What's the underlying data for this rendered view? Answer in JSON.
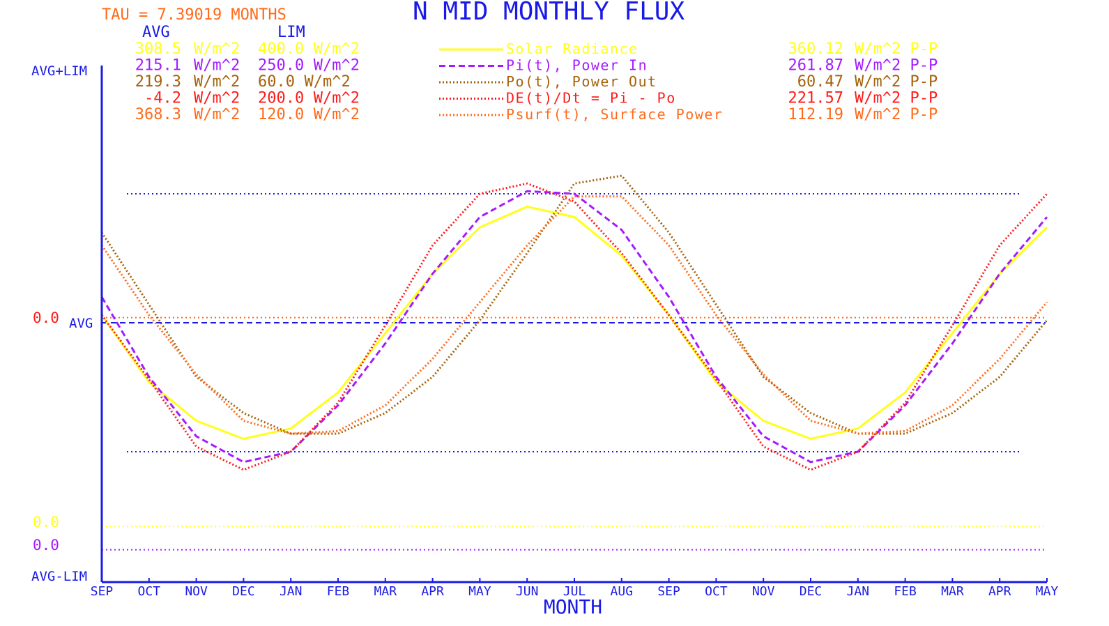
{
  "title": "N MID MONTHLY FLUX",
  "tau_label": "TAU = 7.39019 MONTHS",
  "col_avg": "AVG",
  "col_lim": "LIM",
  "ytick_top": "AVG+LIM",
  "ytick_mid": "AVG",
  "ytick_bot": "AVG-LIM",
  "zero_red": "0.0",
  "zero_yellow": "0.0",
  "zero_purple": "0.0",
  "colors": {
    "axis": "#1a1ae6",
    "title": "#1a1ae6",
    "tau": "#ff6a1a"
  },
  "legend": [
    {
      "avg": "308.5",
      "lim": "400.0",
      "avg_unit": "W/m^2",
      "lim_unit": "W/m^2",
      "name": "Solar Radiance",
      "pp": "360.12",
      "pp_unit": "W/m^2 P-P",
      "color": "#ffff1a"
    },
    {
      "avg": "215.1",
      "lim": "250.0",
      "avg_unit": "W/m^2",
      "lim_unit": "W/m^2",
      "name": "Pi(t), Power In",
      "pp": "261.87",
      "pp_unit": "W/m^2 P-P",
      "color": "#a51aff"
    },
    {
      "avg": "219.3",
      "lim": "60.0",
      "avg_unit": "W/m^2",
      "lim_unit": "W/m^2",
      "name": "Po(t), Power Out",
      "pp": "60.47",
      "pp_unit": "W/m^2 P-P",
      "color": "#a5620a"
    },
    {
      "avg": "-4.2",
      "lim": "200.0",
      "avg_unit": "W/m^2",
      "lim_unit": "W/m^2",
      "name": "DE(t)/Dt = Pi - Po",
      "pp": "221.57",
      "pp_unit": "W/m^2 P-P",
      "color": "#ff1a1a"
    },
    {
      "avg": "368.3",
      "lim": "120.0",
      "avg_unit": "W/m^2",
      "lim_unit": "W/m^2",
      "name": "Psurf(t), Surface Power",
      "pp": "112.19",
      "pp_unit": "W/m^2 P-P",
      "color": "#ff6a1a"
    }
  ],
  "chart_data": {
    "type": "line",
    "title": "N MID MONTHLY FLUX",
    "xlabel": "MONTH",
    "ylabel": "",
    "ylim": [
      -1,
      1
    ],
    "grid": false,
    "categories": [
      "SEP",
      "OCT",
      "NOV",
      "DEC",
      "JAN",
      "FEB",
      "MAR",
      "APR",
      "MAY",
      "JUN",
      "JUL",
      "AUG",
      "SEP",
      "OCT",
      "NOV",
      "DEC",
      "JAN",
      "FEB",
      "MAR",
      "APR",
      "MAY"
    ],
    "reference_lines": [
      {
        "y": 0.5,
        "color": "#1a1ae6"
      },
      {
        "y": -0.5,
        "color": "#1a1ae6"
      },
      {
        "y": 0.0,
        "color": "#1a1ae6"
      },
      {
        "y": 0.02,
        "color": "#ff6a1a"
      },
      {
        "y": -0.79,
        "color": "#ffff1a"
      },
      {
        "y": -0.88,
        "color": "#a51aff"
      }
    ],
    "series": [
      {
        "name": "Solar Radiance",
        "color": "#ffff1a",
        "style": "solid",
        "values": [
          0.03,
          -0.23,
          -0.38,
          -0.45,
          -0.41,
          -0.27,
          -0.04,
          0.19,
          0.37,
          0.45,
          0.41,
          0.26,
          0.03,
          -0.23,
          -0.38,
          -0.45,
          -0.41,
          -0.27,
          -0.04,
          0.19,
          0.37
        ]
      },
      {
        "name": "Pi(t), Power In",
        "color": "#a51aff",
        "style": "dashed",
        "values": [
          0.1,
          -0.21,
          -0.44,
          -0.54,
          -0.5,
          -0.32,
          -0.08,
          0.19,
          0.41,
          0.51,
          0.5,
          0.36,
          0.1,
          -0.21,
          -0.44,
          -0.54,
          -0.5,
          -0.32,
          -0.08,
          0.19,
          0.41
        ]
      },
      {
        "name": "Po(t), Power Out",
        "color": "#a5620a",
        "style": "dotted",
        "values": [
          0.35,
          0.07,
          -0.21,
          -0.35,
          -0.43,
          -0.43,
          -0.35,
          -0.21,
          0.01,
          0.27,
          0.54,
          0.57,
          0.35,
          0.07,
          -0.21,
          -0.35,
          -0.43,
          -0.43,
          -0.35,
          -0.21,
          0.01
        ]
      },
      {
        "name": "DE(t)/Dt = Pi - Po",
        "color": "#ff1a1a",
        "style": "dotted",
        "values": [
          0.03,
          -0.22,
          -0.48,
          -0.57,
          -0.5,
          -0.31,
          -0.01,
          0.3,
          0.5,
          0.54,
          0.47,
          0.27,
          0.03,
          -0.22,
          -0.48,
          -0.57,
          -0.5,
          -0.31,
          -0.01,
          0.3,
          0.5
        ]
      },
      {
        "name": "Psurf(t), Surface Power",
        "color": "#ff6a1a",
        "style": "dotted",
        "values": [
          0.3,
          0.03,
          -0.2,
          -0.38,
          -0.43,
          -0.42,
          -0.32,
          -0.14,
          0.08,
          0.3,
          0.49,
          0.49,
          0.3,
          0.03,
          -0.2,
          -0.38,
          -0.43,
          -0.42,
          -0.32,
          -0.14,
          0.08
        ]
      }
    ]
  }
}
